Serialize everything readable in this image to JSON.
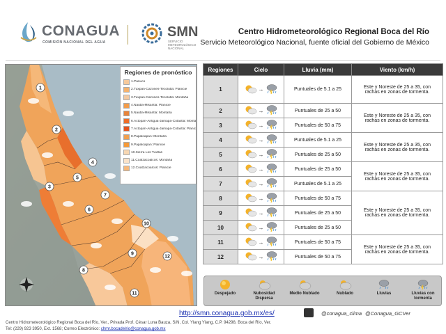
{
  "header": {
    "conagua_name": "CONAGUA",
    "conagua_sub": "COMISIÓN NACIONAL DEL AGUA",
    "smn_name": "SMN",
    "smn_sub": "SERVICIO METEOROLÓGICO NACIONAL",
    "title": "Centro Hidrometeorológico Regional Boca del Río",
    "subtitle": "Servicio Meteorológico Nacional, fuente oficial del Gobierno de México"
  },
  "legend": {
    "title": "Regiones de pronóstico",
    "items": [
      {
        "label": "1.Pánuco",
        "color": "#f7c99a"
      },
      {
        "label": "2.Tuxpan-Cazones-Tecolutla: Planicie",
        "color": "#f6b26b"
      },
      {
        "label": "3.Tuxpan-Cazones-Tecolutla: Montaña",
        "color": "#f4c9a0"
      },
      {
        "label": "4.Nautla-Misantla: Planicie",
        "color": "#f39c4a"
      },
      {
        "label": "5.Nautla-Misantla: Montaña",
        "color": "#e8843a"
      },
      {
        "label": "6.Actopan-Antigua-Jamapa-Cotaxtla: Montaña",
        "color": "#ee6e2a"
      },
      {
        "label": "7.Actopan-Antigua-Jamapa-Cotaxtla: Planicie",
        "color": "#e5531e"
      },
      {
        "label": "8.Papaloapan: Montaña",
        "color": "#f0a050"
      },
      {
        "label": "9.Papaloapan: Planicie",
        "color": "#f59a3a"
      },
      {
        "label": "10.Sierra Los Tuxtlas",
        "color": "#f8d7b2"
      },
      {
        "label": "11.Coatzacoalcos: Montaña",
        "color": "#fbe2c8"
      },
      {
        "label": "12.Coatzacoalcos: Planicie",
        "color": "#f7b87a"
      }
    ]
  },
  "table": {
    "headers": [
      "Regiones",
      "Cielo",
      "Lluvia (mm)",
      "Viento (km/h)"
    ],
    "rows": [
      {
        "region": "1",
        "rain": "Puntuales de 5.1 a 25"
      },
      {
        "region": "2",
        "rain": "Puntuales de 25 a 50"
      },
      {
        "region": "3",
        "rain": "Puntuales de 50 a 75"
      },
      {
        "region": "4",
        "rain": "Puntuales de 5.1 a 25"
      },
      {
        "region": "5",
        "rain": "Puntuales de 25 a 50"
      },
      {
        "region": "6",
        "rain": "Puntuales de 25 a 50"
      },
      {
        "region": "7",
        "rain": "Puntuales de 5.1 a 25"
      },
      {
        "region": "8",
        "rain": "Puntuales de 50 a 75"
      },
      {
        "region": "9",
        "rain": "Puntuales de 25 a 50"
      },
      {
        "region": "10",
        "rain": "Puntuales de 25 a 50"
      },
      {
        "region": "11",
        "rain": "Puntuales de 50 a 75"
      },
      {
        "region": "12",
        "rain": "Puntuales de 50 a 75"
      }
    ],
    "wind": [
      "Este y Noreste de 25 a 35, con rachas en zonas de tormenta.",
      "Este y Noreste de 25 a 35, con rachas en zonas de tormenta.",
      "Este y Noreste de 25 a 35, con rachas en zonas de tormenta.",
      "Este y Noreste de 25 a 35, con rachas en zonas de tormenta.",
      "Este y Noreste de 25 a 35, con rachas en zonas de tormenta.",
      "Este y Noreste de 25 a 35, con rachas en zonas de tormenta."
    ]
  },
  "sky_legend": [
    {
      "label": "Despejado",
      "icon": "sun-icon"
    },
    {
      "label": "Nubosidad Dispersa",
      "icon": "sun-cloud-icon"
    },
    {
      "label": "Medio Nublado",
      "icon": "sun-cloud-icon"
    },
    {
      "label": "Nublado",
      "icon": "cloud-icon"
    },
    {
      "label": "Lluvias",
      "icon": "rain-cloud-icon"
    },
    {
      "label": "Lluvias con tormenta",
      "icon": "storm-cloud-icon"
    }
  ],
  "footer": {
    "url": "http://smn.conagua.gob.mx/es/",
    "twitter1": "@conagua_clima",
    "twitter2": "@Conagua_GCVer",
    "address": "Centro Hidrometeorológico Regional Boca del Río, Ver., Privada Prof. César Luna Bauza, S/N, Col. Ylang Ylang, C.P. 94298, Boca del Río, Ver.",
    "contact": "Tel: (229) 923 3950, Ext. 1568; Correo Electrónico:",
    "email": "chmr.bocadelrio@conagua.gob.mx"
  },
  "map_labels": [
    "1",
    "2",
    "3",
    "4",
    "5",
    "6",
    "7",
    "8",
    "9",
    "10",
    "11",
    "12"
  ]
}
